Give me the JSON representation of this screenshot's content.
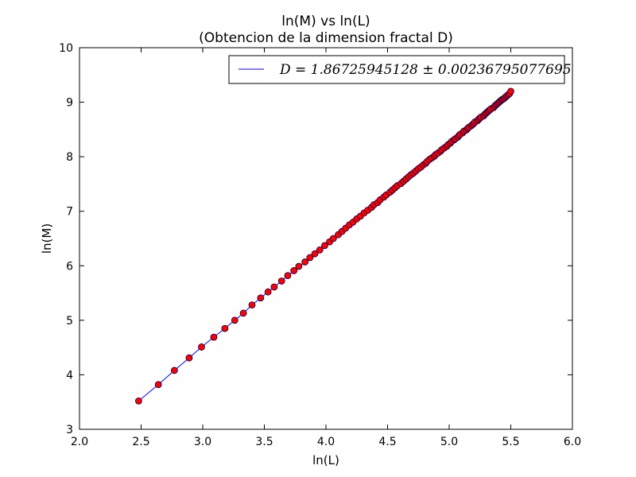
{
  "chart_data": {
    "type": "line",
    "title": "ln(M) vs ln(L)",
    "subtitle": "(Obtencion de la dimension fractal D)",
    "xlabel": "ln(L)",
    "ylabel": "ln(M)",
    "xlim": [
      2.0,
      6.0
    ],
    "ylim": [
      3,
      10
    ],
    "xticks": [
      "2.0",
      "2.5",
      "3.0",
      "3.5",
      "4.0",
      "4.5",
      "5.0",
      "5.5",
      "6.0"
    ],
    "yticks": [
      "3",
      "4",
      "5",
      "6",
      "7",
      "8",
      "9",
      "10"
    ],
    "grid": false,
    "legend_position": "top-right",
    "series": [
      {
        "name": "D = 1.86725945128 ± 0.00236795077695",
        "line_color": "#0000ff",
        "marker_color": "#ff0000",
        "marker_edge": "#00004d",
        "x": [
          2.48,
          2.64,
          2.77,
          2.89,
          2.99,
          3.09,
          3.18,
          3.26,
          3.33,
          3.4,
          3.47,
          3.53,
          3.58,
          3.64,
          3.69,
          3.74,
          3.78,
          3.83,
          3.87,
          3.91,
          3.95,
          3.99,
          4.03,
          4.06,
          4.1,
          4.13,
          4.16,
          4.19,
          4.22,
          4.25,
          4.28,
          4.31,
          4.34,
          4.37,
          4.39,
          4.42,
          4.44,
          4.47,
          4.49,
          4.52,
          4.54,
          4.56,
          4.58,
          4.61,
          4.63,
          4.65,
          4.67,
          4.69,
          4.71,
          4.73,
          4.75,
          4.77,
          4.79,
          4.81,
          4.82,
          4.84,
          4.86,
          4.88,
          4.89,
          4.91,
          4.93,
          4.94,
          4.96,
          4.98,
          4.99,
          5.01,
          5.02,
          5.04,
          5.05,
          5.07,
          5.08,
          5.09,
          5.11,
          5.12,
          5.14,
          5.15,
          5.16,
          5.18,
          5.19,
          5.2,
          5.21,
          5.23,
          5.24,
          5.25,
          5.26,
          5.28,
          5.29,
          5.3,
          5.31,
          5.32,
          5.33,
          5.34,
          5.36,
          5.37,
          5.38,
          5.39,
          5.4,
          5.41,
          5.42,
          5.43,
          5.44,
          5.45,
          5.46,
          5.47,
          5.48,
          5.49,
          5.5
        ],
        "y": [
          3.52,
          3.82,
          4.08,
          4.31,
          4.51,
          4.69,
          4.85,
          5.0,
          5.13,
          5.28,
          5.41,
          5.52,
          5.61,
          5.72,
          5.82,
          5.91,
          5.99,
          6.07,
          6.15,
          6.22,
          6.29,
          6.37,
          6.44,
          6.5,
          6.57,
          6.63,
          6.69,
          6.75,
          6.8,
          6.86,
          6.91,
          6.97,
          7.02,
          7.07,
          7.12,
          7.16,
          7.21,
          7.26,
          7.3,
          7.35,
          7.39,
          7.43,
          7.47,
          7.51,
          7.55,
          7.59,
          7.63,
          7.67,
          7.7,
          7.74,
          7.78,
          7.81,
          7.85,
          7.88,
          7.91,
          7.95,
          7.98,
          8.01,
          8.04,
          8.07,
          8.1,
          8.13,
          8.16,
          8.19,
          8.22,
          8.25,
          8.28,
          8.31,
          8.33,
          8.36,
          8.39,
          8.41,
          8.44,
          8.47,
          8.49,
          8.52,
          8.54,
          8.57,
          8.59,
          8.61,
          8.64,
          8.66,
          8.69,
          8.71,
          8.73,
          8.75,
          8.78,
          8.8,
          8.82,
          8.84,
          8.86,
          8.88,
          8.9,
          8.93,
          8.95,
          8.97,
          8.99,
          9.01,
          9.03,
          9.05,
          9.06,
          9.08,
          9.1,
          9.12,
          9.14,
          9.16,
          9.2
        ]
      }
    ]
  }
}
